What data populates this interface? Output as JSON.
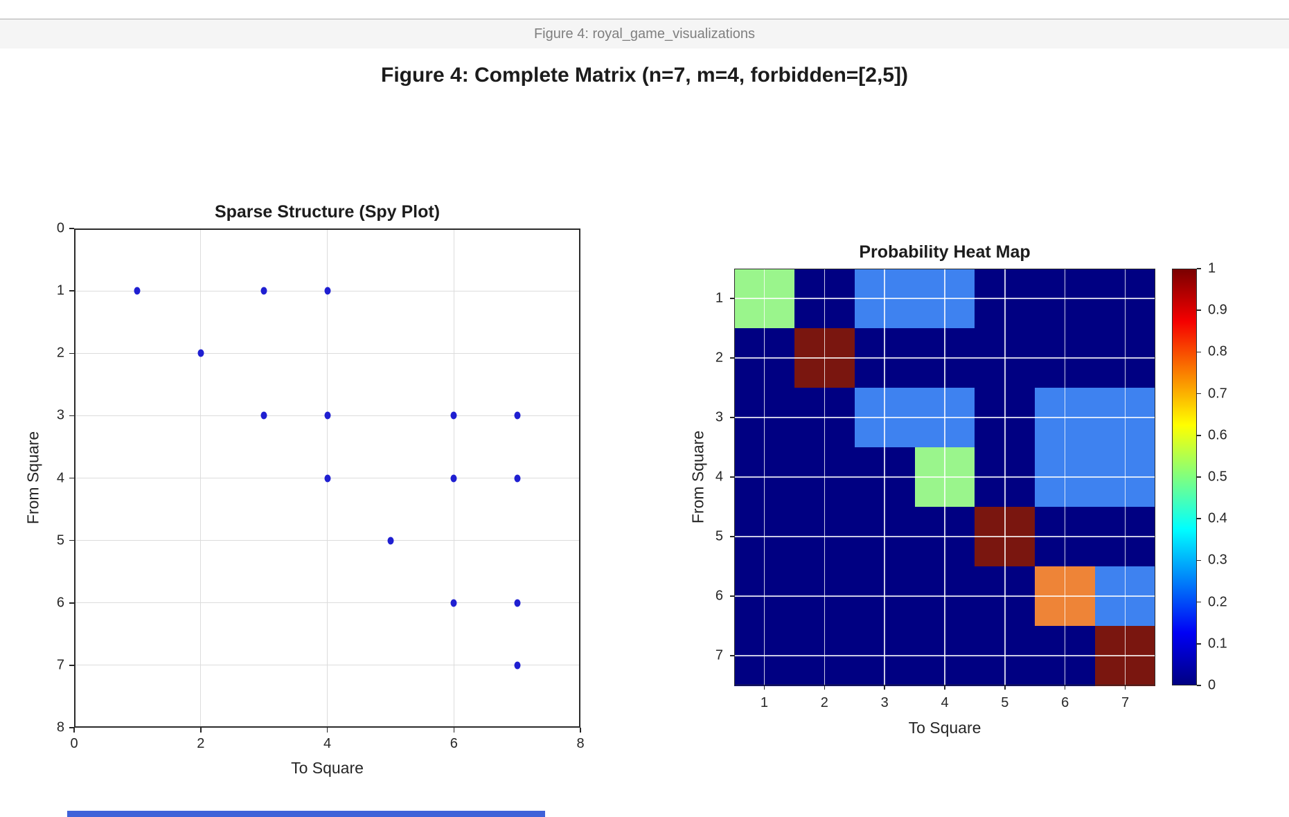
{
  "window_bar": {
    "title": "Figure 4: royal_game_visualizations",
    "bg": "#f5f5f5",
    "text_color": "#7f7f7f"
  },
  "figure_title": "Figure 4: Complete Matrix (n=7, m=4, forbidden=[2,5])",
  "cropped_bottom_subplot": {
    "color": "#3f62d9"
  },
  "chart_data": [
    {
      "type": "scatter",
      "variant": "spy-plot",
      "title": "Sparse Structure (Spy Plot)",
      "xlabel": "To Square",
      "ylabel": "From Square",
      "xlim": [
        0,
        8
      ],
      "ylim": [
        0,
        8
      ],
      "y_axis_inverted": true,
      "grid": true,
      "xticks": [
        0,
        2,
        4,
        6,
        8
      ],
      "yticks": [
        0,
        1,
        2,
        3,
        4,
        5,
        6,
        7,
        8
      ],
      "marker": {
        "shape": "dot",
        "color": "#1f1fd1"
      },
      "points": [
        {
          "from": 1,
          "to": 1
        },
        {
          "from": 1,
          "to": 3
        },
        {
          "from": 1,
          "to": 4
        },
        {
          "from": 2,
          "to": 2
        },
        {
          "from": 3,
          "to": 3
        },
        {
          "from": 3,
          "to": 4
        },
        {
          "from": 3,
          "to": 6
        },
        {
          "from": 3,
          "to": 7
        },
        {
          "from": 4,
          "to": 4
        },
        {
          "from": 4,
          "to": 6
        },
        {
          "from": 4,
          "to": 7
        },
        {
          "from": 5,
          "to": 5
        },
        {
          "from": 6,
          "to": 6
        },
        {
          "from": 6,
          "to": 7
        },
        {
          "from": 7,
          "to": 7
        }
      ]
    },
    {
      "type": "heatmap",
      "title": "Probability Heat Map",
      "xlabel": "To Square",
      "ylabel": "From Square",
      "xticks": [
        1,
        2,
        3,
        4,
        5,
        6,
        7
      ],
      "yticks": [
        1,
        2,
        3,
        4,
        5,
        6,
        7
      ],
      "colormap": "jet",
      "values": [
        [
          0.5,
          0,
          0.25,
          0.25,
          0,
          0,
          0
        ],
        [
          0,
          1,
          0,
          0,
          0,
          0,
          0
        ],
        [
          0,
          0,
          0.25,
          0.25,
          0,
          0.25,
          0.25
        ],
        [
          0,
          0,
          0,
          0.5,
          0,
          0.25,
          0.25
        ],
        [
          0,
          0,
          0,
          0,
          1,
          0,
          0
        ],
        [
          0,
          0,
          0,
          0,
          0,
          0.75,
          0.25
        ],
        [
          0,
          0,
          0,
          0,
          0,
          0,
          1
        ]
      ],
      "value_colors": {
        "0": "#000082",
        "0.25": "#3e82f0",
        "0.5": "#9af58c",
        "0.75": "#ee8437",
        "1": "#7a160f"
      },
      "colorbar": {
        "ticks": [
          "1",
          "0.9",
          "0.8",
          "0.7",
          "0.6",
          "0.5",
          "0.4",
          "0.3",
          "0.2",
          "0.1",
          "0"
        ],
        "range": [
          0,
          1
        ],
        "gradient_stops": [
          {
            "pos": 0,
            "color": "#000082"
          },
          {
            "pos": 12.5,
            "color": "#0000f5"
          },
          {
            "pos": 37.5,
            "color": "#00ffff"
          },
          {
            "pos": 62.5,
            "color": "#ffff00"
          },
          {
            "pos": 87.5,
            "color": "#f50000"
          },
          {
            "pos": 100,
            "color": "#7a0000"
          }
        ]
      }
    }
  ]
}
